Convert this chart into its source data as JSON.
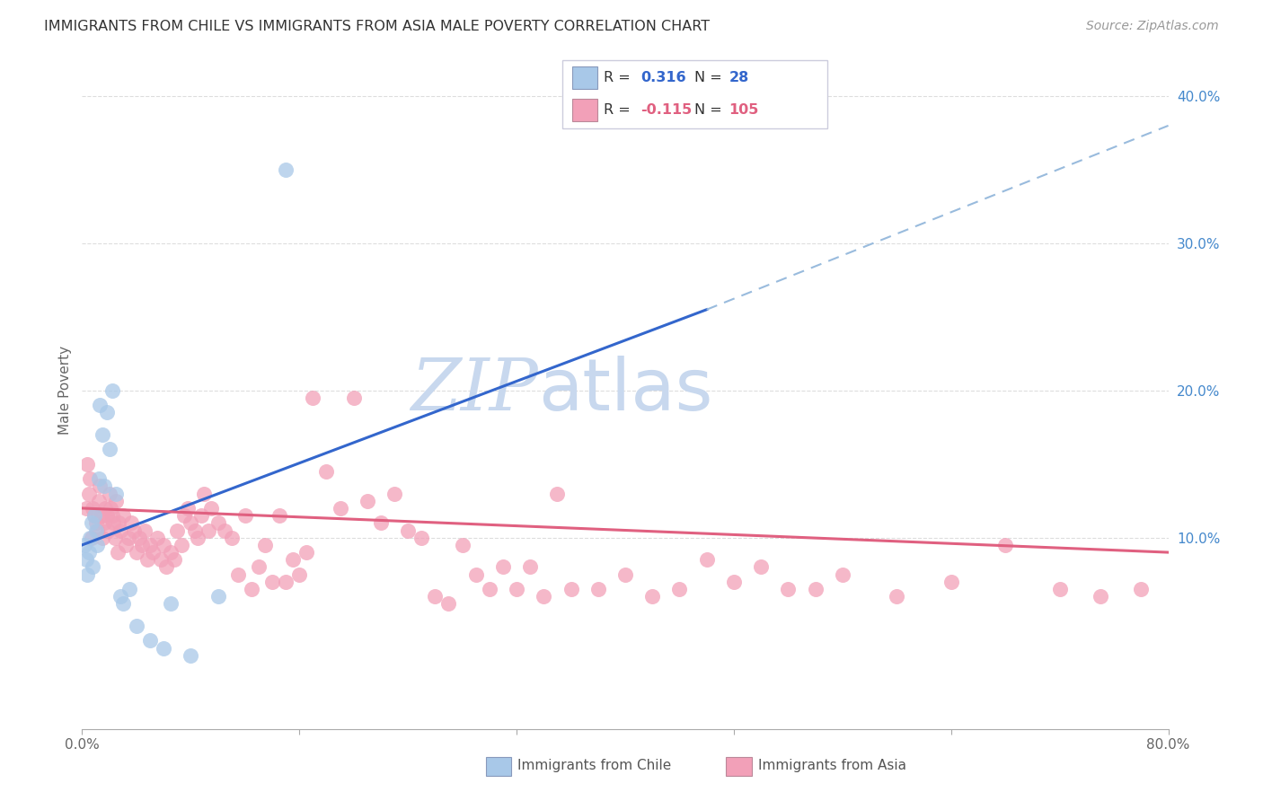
{
  "title": "IMMIGRANTS FROM CHILE VS IMMIGRANTS FROM ASIA MALE POVERTY CORRELATION CHART",
  "source": "Source: ZipAtlas.com",
  "ylabel": "Male Poverty",
  "xlim": [
    0.0,
    0.8
  ],
  "ylim": [
    -0.03,
    0.43
  ],
  "r_chile": 0.316,
  "n_chile": 28,
  "r_asia": -0.115,
  "n_asia": 105,
  "chile_color": "#a8c8e8",
  "asia_color": "#f2a0b8",
  "chile_line_color": "#3366cc",
  "asia_line_color": "#e06080",
  "dashed_line_color": "#99bbdd",
  "watermark_zip_color": "#c8d8ee",
  "watermark_atlas_color": "#c8d8ee",
  "title_color": "#333333",
  "source_color": "#999999",
  "right_axis_color": "#4488cc",
  "background_color": "#ffffff",
  "grid_color": "#dddddd",
  "chile_line_start_x": 0.0,
  "chile_line_start_y": 0.095,
  "chile_line_solid_end_x": 0.46,
  "chile_line_solid_end_y": 0.255,
  "chile_line_dash_end_x": 0.8,
  "chile_line_dash_end_y": 0.38,
  "asia_line_start_x": 0.0,
  "asia_line_start_y": 0.12,
  "asia_line_end_x": 0.8,
  "asia_line_end_y": 0.09,
  "chile_scatter_x": [
    0.002,
    0.003,
    0.004,
    0.005,
    0.006,
    0.007,
    0.008,
    0.009,
    0.01,
    0.011,
    0.012,
    0.013,
    0.015,
    0.016,
    0.018,
    0.02,
    0.022,
    0.025,
    0.028,
    0.03,
    0.035,
    0.04,
    0.05,
    0.06,
    0.065,
    0.08,
    0.1,
    0.15
  ],
  "chile_scatter_y": [
    0.095,
    0.085,
    0.075,
    0.09,
    0.1,
    0.11,
    0.08,
    0.115,
    0.105,
    0.095,
    0.14,
    0.19,
    0.17,
    0.135,
    0.185,
    0.16,
    0.2,
    0.13,
    0.06,
    0.055,
    0.065,
    0.04,
    0.03,
    0.025,
    0.055,
    0.02,
    0.06,
    0.35
  ],
  "asia_scatter_x": [
    0.003,
    0.004,
    0.005,
    0.006,
    0.007,
    0.008,
    0.009,
    0.01,
    0.011,
    0.012,
    0.013,
    0.014,
    0.015,
    0.016,
    0.017,
    0.018,
    0.019,
    0.02,
    0.021,
    0.022,
    0.023,
    0.024,
    0.025,
    0.026,
    0.027,
    0.028,
    0.03,
    0.032,
    0.034,
    0.036,
    0.038,
    0.04,
    0.042,
    0.044,
    0.046,
    0.048,
    0.05,
    0.052,
    0.055,
    0.058,
    0.06,
    0.062,
    0.065,
    0.068,
    0.07,
    0.073,
    0.075,
    0.078,
    0.08,
    0.083,
    0.085,
    0.088,
    0.09,
    0.093,
    0.095,
    0.1,
    0.105,
    0.11,
    0.115,
    0.12,
    0.125,
    0.13,
    0.135,
    0.14,
    0.145,
    0.15,
    0.155,
    0.16,
    0.165,
    0.17,
    0.18,
    0.19,
    0.2,
    0.21,
    0.22,
    0.23,
    0.24,
    0.25,
    0.26,
    0.27,
    0.28,
    0.29,
    0.3,
    0.31,
    0.32,
    0.33,
    0.34,
    0.35,
    0.36,
    0.38,
    0.4,
    0.42,
    0.44,
    0.46,
    0.48,
    0.5,
    0.52,
    0.54,
    0.56,
    0.6,
    0.64,
    0.68,
    0.72,
    0.75,
    0.78
  ],
  "asia_scatter_y": [
    0.12,
    0.15,
    0.13,
    0.14,
    0.1,
    0.12,
    0.115,
    0.11,
    0.105,
    0.125,
    0.135,
    0.115,
    0.1,
    0.11,
    0.12,
    0.115,
    0.105,
    0.13,
    0.12,
    0.115,
    0.11,
    0.1,
    0.125,
    0.09,
    0.11,
    0.105,
    0.115,
    0.095,
    0.1,
    0.11,
    0.105,
    0.09,
    0.1,
    0.095,
    0.105,
    0.085,
    0.095,
    0.09,
    0.1,
    0.085,
    0.095,
    0.08,
    0.09,
    0.085,
    0.105,
    0.095,
    0.115,
    0.12,
    0.11,
    0.105,
    0.1,
    0.115,
    0.13,
    0.105,
    0.12,
    0.11,
    0.105,
    0.1,
    0.075,
    0.115,
    0.065,
    0.08,
    0.095,
    0.07,
    0.115,
    0.07,
    0.085,
    0.075,
    0.09,
    0.195,
    0.145,
    0.12,
    0.195,
    0.125,
    0.11,
    0.13,
    0.105,
    0.1,
    0.06,
    0.055,
    0.095,
    0.075,
    0.065,
    0.08,
    0.065,
    0.08,
    0.06,
    0.13,
    0.065,
    0.065,
    0.075,
    0.06,
    0.065,
    0.085,
    0.07,
    0.08,
    0.065,
    0.065,
    0.075,
    0.06,
    0.07,
    0.095,
    0.065,
    0.06,
    0.065
  ]
}
